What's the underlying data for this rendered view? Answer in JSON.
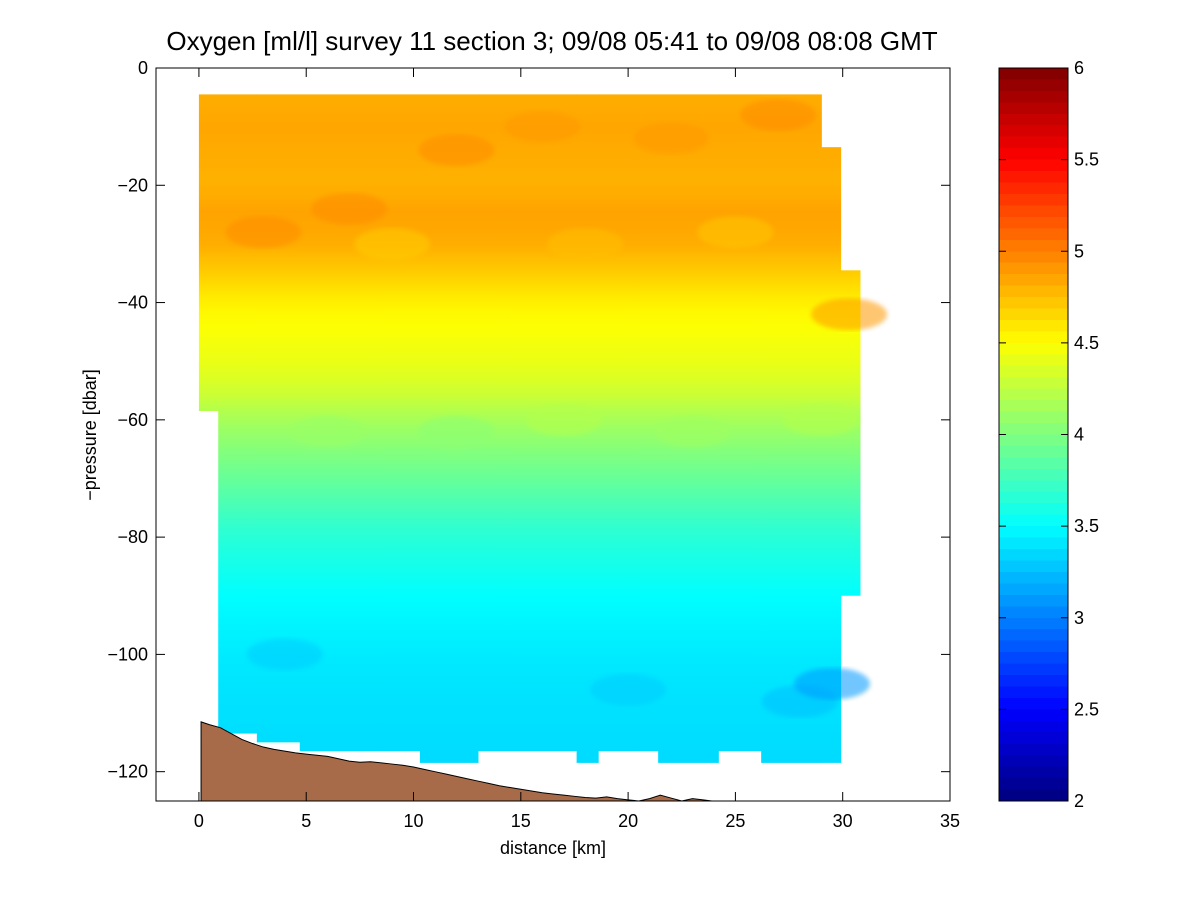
{
  "chart_data": {
    "type": "heatmap",
    "title": "Oxygen [ml/l] survey 11 section 3; 09/08 05:41 to 09/08 08:08 GMT",
    "xlabel": "distance [km]",
    "ylabel": "−pressure [dbar]",
    "xlim": [
      -2,
      35
    ],
    "ylim": [
      -125,
      0
    ],
    "x_ticks": [
      "0",
      "5",
      "10",
      "15",
      "20",
      "25",
      "30",
      "35"
    ],
    "x_tick_values": [
      0,
      5,
      10,
      15,
      20,
      25,
      30,
      35
    ],
    "y_ticks": [
      "0",
      "−20",
      "−40",
      "−60",
      "−80",
      "−100",
      "−120"
    ],
    "y_tick_values": [
      0,
      -20,
      -40,
      -60,
      -80,
      -100,
      -120
    ],
    "colorbar": {
      "range": [
        2,
        6
      ],
      "colormap": "jet",
      "ticks": [
        "2",
        "2.5",
        "3",
        "3.5",
        "4",
        "4.5",
        "5",
        "5.5",
        "6"
      ],
      "tick_values": [
        2,
        2.5,
        3,
        3.5,
        4,
        4.5,
        5,
        5.5,
        6
      ]
    },
    "oxygen_profile": {
      "depth": [
        -5,
        -10,
        -20,
        -25,
        -30,
        -35,
        -40,
        -45,
        -50,
        -55,
        -60,
        -70,
        -80,
        -90,
        -100,
        -110,
        -118
      ],
      "value": [
        4.82,
        4.85,
        4.8,
        4.87,
        4.82,
        4.7,
        4.55,
        4.48,
        4.42,
        4.32,
        4.15,
        3.9,
        3.65,
        3.5,
        3.42,
        3.38,
        3.36
      ]
    },
    "data_extent": {
      "segments": [
        {
          "x0": 0.0,
          "x1": 0.9,
          "top": -4.5,
          "bottom": -58.5
        },
        {
          "x0": 0.9,
          "x1": 2.7,
          "top": -4.5,
          "bottom": -113.5
        },
        {
          "x0": 2.7,
          "x1": 4.7,
          "top": -4.5,
          "bottom": -115.0
        },
        {
          "x0": 4.7,
          "x1": 10.3,
          "top": -4.5,
          "bottom": -116.5
        },
        {
          "x0": 10.3,
          "x1": 13.0,
          "top": -4.5,
          "bottom": -118.5
        },
        {
          "x0": 13.0,
          "x1": 17.6,
          "top": -4.5,
          "bottom": -116.5
        },
        {
          "x0": 17.6,
          "x1": 18.6,
          "top": -4.5,
          "bottom": -118.5
        },
        {
          "x0": 18.6,
          "x1": 21.4,
          "top": -4.5,
          "bottom": -116.5
        },
        {
          "x0": 21.4,
          "x1": 24.2,
          "top": -4.5,
          "bottom": -118.5
        },
        {
          "x0": 24.2,
          "x1": 26.2,
          "top": -4.5,
          "bottom": -116.5
        },
        {
          "x0": 26.2,
          "x1": 29.0,
          "top": -4.5,
          "bottom": -118.5
        },
        {
          "x0": 29.0,
          "x1": 29.9,
          "top": -13.5,
          "bottom": -118.5
        },
        {
          "x0": 29.9,
          "x1": 30.8,
          "top": -34.5,
          "bottom": -90.0
        }
      ]
    },
    "bathymetry": {
      "x": [
        0.1,
        0.5,
        1.0,
        1.5,
        2.0,
        2.5,
        3.0,
        3.5,
        4.0,
        4.5,
        5.0,
        5.5,
        6.0,
        6.5,
        7.0,
        7.5,
        8.0,
        8.5,
        9.0,
        9.5,
        10.0,
        10.5,
        11.0,
        11.5,
        12.0,
        12.5,
        13.0,
        13.5,
        14.0,
        14.5,
        15.0,
        15.5,
        16.0,
        16.5,
        17.0,
        17.5,
        18.0,
        18.5,
        19.0,
        19.5,
        20.0,
        20.5,
        21.0,
        21.5,
        22.0,
        22.5,
        23.0,
        23.5,
        23.9
      ],
      "depth": [
        -111.5,
        -112.0,
        -112.5,
        -113.5,
        -114.5,
        -115.2,
        -115.8,
        -116.2,
        -116.5,
        -116.8,
        -117.0,
        -117.2,
        -117.4,
        -117.8,
        -118.2,
        -118.4,
        -118.3,
        -118.5,
        -118.7,
        -118.9,
        -119.2,
        -119.6,
        -120.0,
        -120.4,
        -120.8,
        -121.2,
        -121.6,
        -122.0,
        -122.4,
        -122.7,
        -123.0,
        -123.3,
        -123.6,
        -123.8,
        -124.0,
        -124.2,
        -124.4,
        -124.5,
        -124.3,
        -124.6,
        -124.8,
        -125.0,
        -124.6,
        -124.0,
        -124.5,
        -125.0,
        -124.6,
        -124.8,
        -125.0
      ]
    },
    "bathymetry_color": "#a86b4a"
  }
}
